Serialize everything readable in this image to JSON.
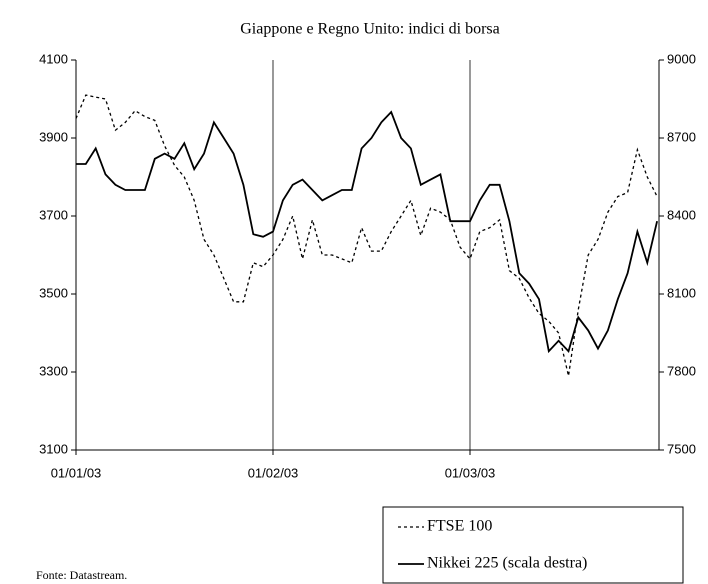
{
  "chart_data": {
    "type": "line",
    "title": "Giappone e Regno Unito: indici di borsa",
    "source": "Fonte: Datastream.",
    "categories": [
      "01/01/03",
      null,
      null,
      null,
      null,
      null,
      null,
      null,
      null,
      null,
      null,
      null,
      null,
      null,
      null,
      null,
      null,
      null,
      null,
      null,
      "01/02/03",
      null,
      null,
      null,
      null,
      null,
      null,
      null,
      null,
      null,
      null,
      null,
      null,
      null,
      null,
      null,
      null,
      null,
      null,
      null,
      "01/03/03",
      null,
      null,
      null,
      null,
      null,
      null,
      null,
      null,
      null,
      null,
      null,
      null,
      null,
      null,
      null,
      null,
      null,
      null,
      null
    ],
    "series": [
      {
        "name": "FTSE 100",
        "color": "#000000",
        "dash": true,
        "values": [
          3950,
          4010,
          4005,
          4000,
          3920,
          3940,
          3970,
          3955,
          3945,
          3880,
          3830,
          3800,
          3740,
          3640,
          3600,
          3540,
          3480,
          3480,
          3580,
          3570,
          3600,
          3640,
          3700,
          3590,
          3690,
          3600,
          3600,
          3590,
          3580,
          3670,
          3610,
          3610,
          3660,
          3700,
          3740,
          3650,
          3720,
          3710,
          3690,
          3620,
          3590,
          3660,
          3670,
          3690,
          3560,
          3540,
          3490,
          3450,
          3430,
          3400,
          3290,
          3460,
          3600,
          3640,
          3710,
          3750,
          3760,
          3870,
          3800,
          3750
        ]
      },
      {
        "name": "Nikkei 225 (scala destra)",
        "color": "#000000",
        "axis": "y2",
        "values": [
          8600,
          8600,
          8660,
          8560,
          8520,
          8500,
          8500,
          8500,
          8620,
          8640,
          8620,
          8680,
          8580,
          8640,
          8760,
          8700,
          8640,
          8520,
          8330,
          8320,
          8340,
          8460,
          8520,
          8540,
          8500,
          8460,
          8480,
          8500,
          8500,
          8660,
          8700,
          8760,
          8800,
          8700,
          8660,
          8520,
          8540,
          8560,
          8380,
          8380,
          8380,
          8460,
          8520,
          8520,
          8380,
          8180,
          8140,
          8080,
          7880,
          7920,
          7880,
          8010,
          7960,
          7890,
          7960,
          8080,
          8180,
          8340,
          8220,
          8380
        ]
      }
    ],
    "ylim": [
      3100,
      4100
    ],
    "yticks": [
      3100,
      3300,
      3500,
      3700,
      3900,
      4100
    ],
    "y2lim": [
      7500,
      9000
    ],
    "y2ticks": [
      7500,
      7800,
      8100,
      8400,
      8700,
      9000
    ],
    "category_grid": true
  }
}
